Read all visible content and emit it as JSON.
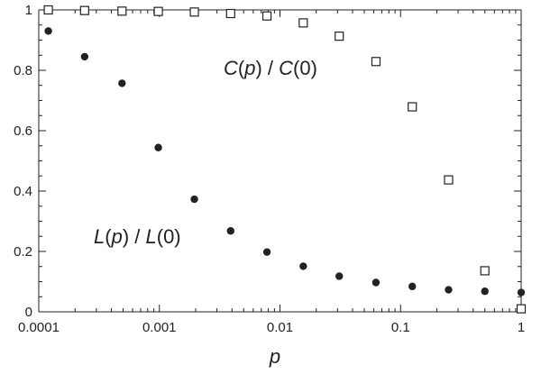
{
  "chart_data": {
    "type": "scatter",
    "xscale": "log",
    "xlim": [
      0.0001,
      1
    ],
    "ylim": [
      0,
      1
    ],
    "xlabel": "p",
    "ylabel": "",
    "grid": false,
    "xticks": [
      {
        "value": 0.0001,
        "label": "0.0001"
      },
      {
        "value": 0.001,
        "label": "0.001"
      },
      {
        "value": 0.01,
        "label": "0.01"
      },
      {
        "value": 0.1,
        "label": "0.1"
      },
      {
        "value": 1,
        "label": "1"
      }
    ],
    "yticks": [
      {
        "value": 0,
        "label": "0"
      },
      {
        "value": 0.2,
        "label": "0.2"
      },
      {
        "value": 0.4,
        "label": "0.4"
      },
      {
        "value": 0.6,
        "label": "0.6"
      },
      {
        "value": 0.8,
        "label": "0.8"
      },
      {
        "value": 1,
        "label": "1"
      }
    ],
    "series": [
      {
        "key": "C",
        "marker": "open-square",
        "color": "#222222",
        "x": [
          0.00012,
          0.00024,
          0.00049,
          0.00098,
          0.00195,
          0.0039,
          0.0078,
          0.0156,
          0.031,
          0.0625,
          0.125,
          0.25,
          0.5,
          1.0
        ],
        "y": [
          1.0,
          0.998,
          0.996,
          0.995,
          0.993,
          0.988,
          0.98,
          0.957,
          0.913,
          0.829,
          0.679,
          0.437,
          0.136,
          0.01
        ]
      },
      {
        "key": "L",
        "marker": "filled-circle",
        "color": "#222222",
        "x": [
          0.00012,
          0.00024,
          0.00049,
          0.00098,
          0.00195,
          0.0039,
          0.0078,
          0.0156,
          0.031,
          0.0625,
          0.125,
          0.25,
          0.5,
          1.0
        ],
        "y": [
          0.93,
          0.845,
          0.757,
          0.544,
          0.373,
          0.268,
          0.198,
          0.151,
          0.118,
          0.097,
          0.084,
          0.073,
          0.068,
          0.064
        ]
      }
    ],
    "annotations": [
      {
        "id": "c-label",
        "text_parts": [
          "C",
          "(",
          "p",
          ") / ",
          "C",
          "(0)"
        ]
      },
      {
        "id": "l-label",
        "text_parts": [
          "L",
          "(",
          "p",
          ") / ",
          "L",
          "(0)"
        ]
      }
    ]
  }
}
